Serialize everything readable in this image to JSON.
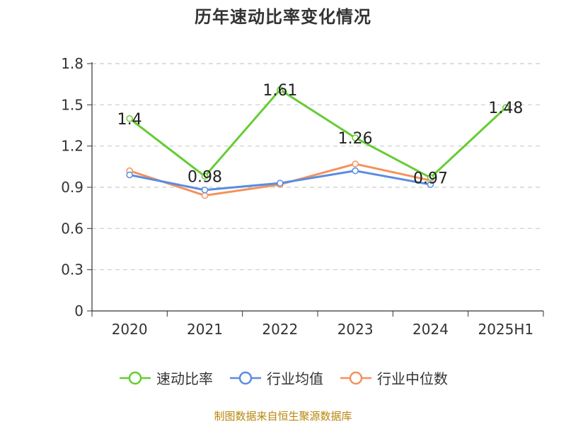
{
  "chart_data": {
    "type": "line",
    "title": "历年速动比率变化情况",
    "categories": [
      "2020",
      "2021",
      "2022",
      "2023",
      "2024",
      "2025H1"
    ],
    "ylim": [
      0,
      1.8
    ],
    "yticks": [
      "0",
      "0.3",
      "0.6",
      "0.9",
      "1.2",
      "1.5",
      "1.8"
    ],
    "grid": true,
    "legend_position": "bottom",
    "series": [
      {
        "name": "速动比率",
        "color": "#66cc33",
        "values": [
          1.4,
          0.98,
          1.61,
          1.26,
          0.97,
          1.48
        ],
        "labels": [
          "1.4",
          "0.98",
          "1.61",
          "1.26",
          "0.97",
          "1.48"
        ]
      },
      {
        "name": "行业均值",
        "color": "#5b8ddf",
        "values": [
          0.99,
          0.88,
          0.93,
          1.02,
          0.92,
          null
        ]
      },
      {
        "name": "行业中位数",
        "color": "#f5915c",
        "values": [
          1.02,
          0.84,
          0.92,
          1.07,
          0.95,
          null
        ]
      }
    ]
  },
  "source_note": "制图数据来自恒生聚源数据库"
}
